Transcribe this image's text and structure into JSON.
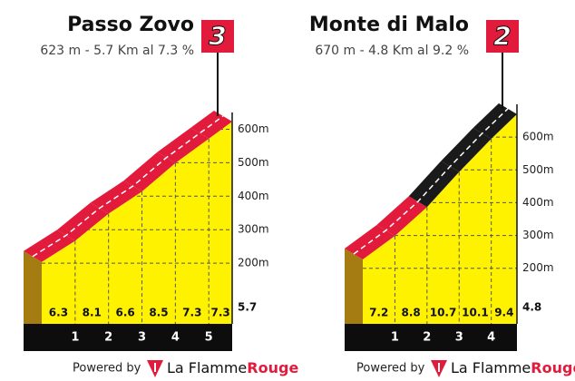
{
  "chart_data": [
    {
      "type": "profile",
      "title": "Passo Zovo",
      "subtitle": "623 m - 5.7 Km al 7.3 %",
      "category": "3",
      "elevation": 623,
      "values": [
        6.3,
        8.1,
        6.6,
        8.5,
        7.3,
        7.3
      ],
      "colors": [
        "#e21b3c",
        "#e21b3c",
        "#e21b3c",
        "#e21b3c",
        "#e21b3c",
        "#e21b3c"
      ],
      "xlim": [
        0,
        5.7
      ],
      "xticks": [
        1,
        2,
        3,
        4,
        5
      ],
      "ylim": [
        0,
        650
      ],
      "yticks": [
        {
          "value": 200,
          "label": "200m"
        },
        {
          "value": 300,
          "label": "300m"
        },
        {
          "value": 400,
          "label": "400m"
        },
        {
          "value": 500,
          "label": "500m"
        },
        {
          "value": 600,
          "label": "600m"
        }
      ],
      "footer": {
        "prefix": "Powered by",
        "brand": "La Flamme",
        "accent": "Rouge"
      }
    },
    {
      "type": "profile",
      "title": "Monte di Malo",
      "subtitle": "670 m - 4.8 Km al 9.2 %",
      "category": "2",
      "elevation": 670,
      "values": [
        7.2,
        8.8,
        10.7,
        10.1,
        9.4
      ],
      "colors": [
        "#e21b3c",
        "#e21b3c",
        "#1a1a1a",
        "#1a1a1a",
        "#1a1a1a"
      ],
      "xlim": [
        0,
        4.8
      ],
      "xticks": [
        1,
        2,
        3,
        4
      ],
      "ylim": [
        0,
        700
      ],
      "yticks": [
        {
          "value": 200,
          "label": "200m"
        },
        {
          "value": 300,
          "label": "300m"
        },
        {
          "value": 400,
          "label": "400m"
        },
        {
          "value": 500,
          "label": "500m"
        },
        {
          "value": 600,
          "label": "600m"
        }
      ],
      "footer": {
        "prefix": "Powered by",
        "brand": "La Flamme",
        "accent": "Rouge"
      }
    }
  ]
}
